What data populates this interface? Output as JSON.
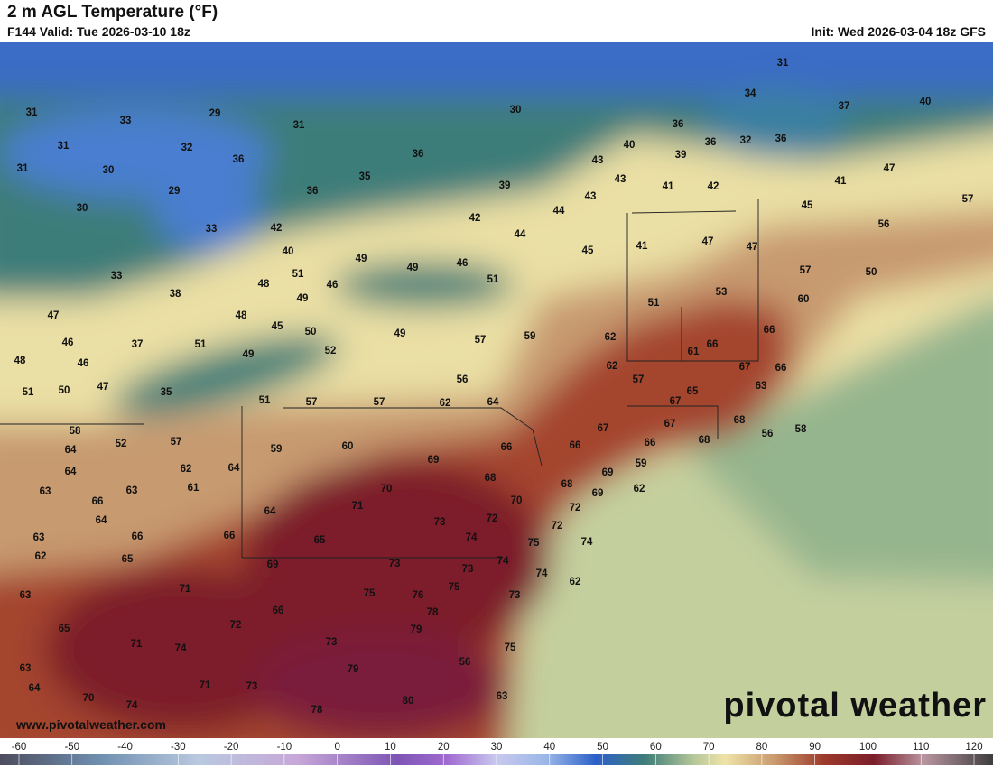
{
  "header": {
    "title": "2 m AGL Temperature (°F)",
    "valid": "F144 Valid: Tue 2026-03-10 18z",
    "init": "Init: Wed 2026-03-04 18z GFS"
  },
  "map": {
    "temperature_labels": [
      31,
      33,
      29,
      31,
      30,
      31,
      34,
      37,
      40,
      31,
      32,
      36,
      36,
      36,
      36,
      32,
      36,
      40,
      39,
      31,
      30,
      36,
      35,
      39,
      43,
      43,
      41,
      42,
      41,
      47,
      29,
      30,
      33,
      42,
      42,
      43,
      44,
      45,
      57,
      44,
      45,
      41,
      47,
      47,
      56,
      40,
      49,
      49,
      46,
      51,
      57,
      50,
      33,
      51,
      48,
      46,
      38,
      49,
      53,
      60,
      51,
      47,
      48,
      45,
      50,
      49,
      57,
      59,
      62,
      66,
      46,
      37,
      51,
      52,
      61,
      66,
      48,
      46,
      49,
      62,
      67,
      66,
      51,
      50,
      47,
      35,
      56,
      57,
      65,
      63,
      51,
      57,
      57,
      62,
      64,
      67,
      58,
      67,
      67,
      68,
      56,
      58,
      52,
      57,
      59,
      60,
      66,
      66,
      66,
      68,
      64,
      69,
      59,
      64,
      62,
      64,
      68,
      69,
      68,
      62,
      63,
      61,
      63,
      70,
      69,
      66,
      71,
      70,
      72,
      64,
      64,
      73,
      72,
      72,
      63,
      66,
      66,
      65,
      74,
      75,
      74,
      62,
      65,
      69,
      73,
      74,
      73,
      74,
      62,
      63,
      71,
      75,
      75,
      76,
      73,
      78,
      66,
      72,
      65,
      79,
      71,
      74,
      73,
      75,
      63,
      56,
      79,
      64,
      71,
      73,
      70,
      74,
      80,
      78,
      63
    ]
  },
  "footer": {
    "website": "www.pivotalweather.com",
    "brand": "pivotal weather"
  },
  "colorbar": {
    "ticks": [
      -60,
      -50,
      -40,
      -30,
      -20,
      -10,
      0,
      10,
      20,
      30,
      40,
      50,
      60,
      70,
      80,
      90,
      100,
      110,
      120
    ]
  }
}
